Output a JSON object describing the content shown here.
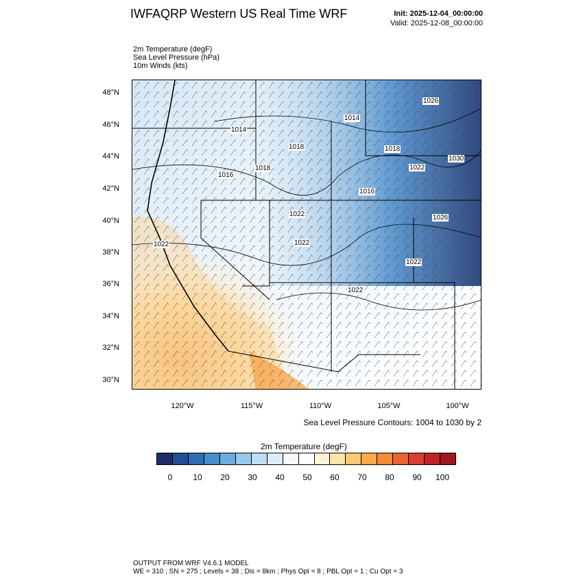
{
  "header": {
    "title": "IWFAQRP Western US Real Time WRF",
    "init": "Init: 2025-12-04_00:00:00",
    "valid": "Valid: 2025-12-08_00:00:00"
  },
  "fields": {
    "temp": "2m Temperature   (degF)",
    "slp": "Sea Level Pressure   (hPa)",
    "winds": "10m Winds   (kts)"
  },
  "map": {
    "lat_labels": [
      "48°N",
      "46°N",
      "44°N",
      "42°N",
      "40°N",
      "38°N",
      "36°N",
      "34°N",
      "32°N",
      "30°N"
    ],
    "lon_labels": [
      "120°W",
      "115°W",
      "110°W",
      "105°W",
      "100°W"
    ],
    "pressure_labels": [
      "1026",
      "1014",
      "1014",
      "1018",
      "1016",
      "1018",
      "1018",
      "1022",
      "1030",
      "1016",
      "1022",
      "1026",
      "1022",
      "1022",
      "1022",
      "1022"
    ],
    "contour_info": "Sea Level Pressure Contours: 1004 to 1030 by 2"
  },
  "colorbar": {
    "title": "2m Temperature  (degF)",
    "labels": [
      "0",
      "10",
      "20",
      "30",
      "40",
      "50",
      "60",
      "70",
      "80",
      "90",
      "100"
    ],
    "colors": [
      "#1b2f66",
      "#244e94",
      "#2e6db6",
      "#468ecb",
      "#6cacdc",
      "#97c9eb",
      "#bcdff4",
      "#dcedf9",
      "#f4f9fd",
      "#ffffff",
      "#fdf3d8",
      "#fde4a7",
      "#fcc971",
      "#f9ab48",
      "#f58a37",
      "#ea6430",
      "#d7402a",
      "#bd2426",
      "#9b1b1e"
    ]
  },
  "footer": {
    "line1": "OUTPUT FROM WRF V4.6.1 MODEL",
    "line2": "WE = 310 ; SN = 275 ; Levels = 38 ; Dis = 8km ; Phys Opt = 8 ; PBL Opt = 1 ; Cu Opt = 3"
  }
}
